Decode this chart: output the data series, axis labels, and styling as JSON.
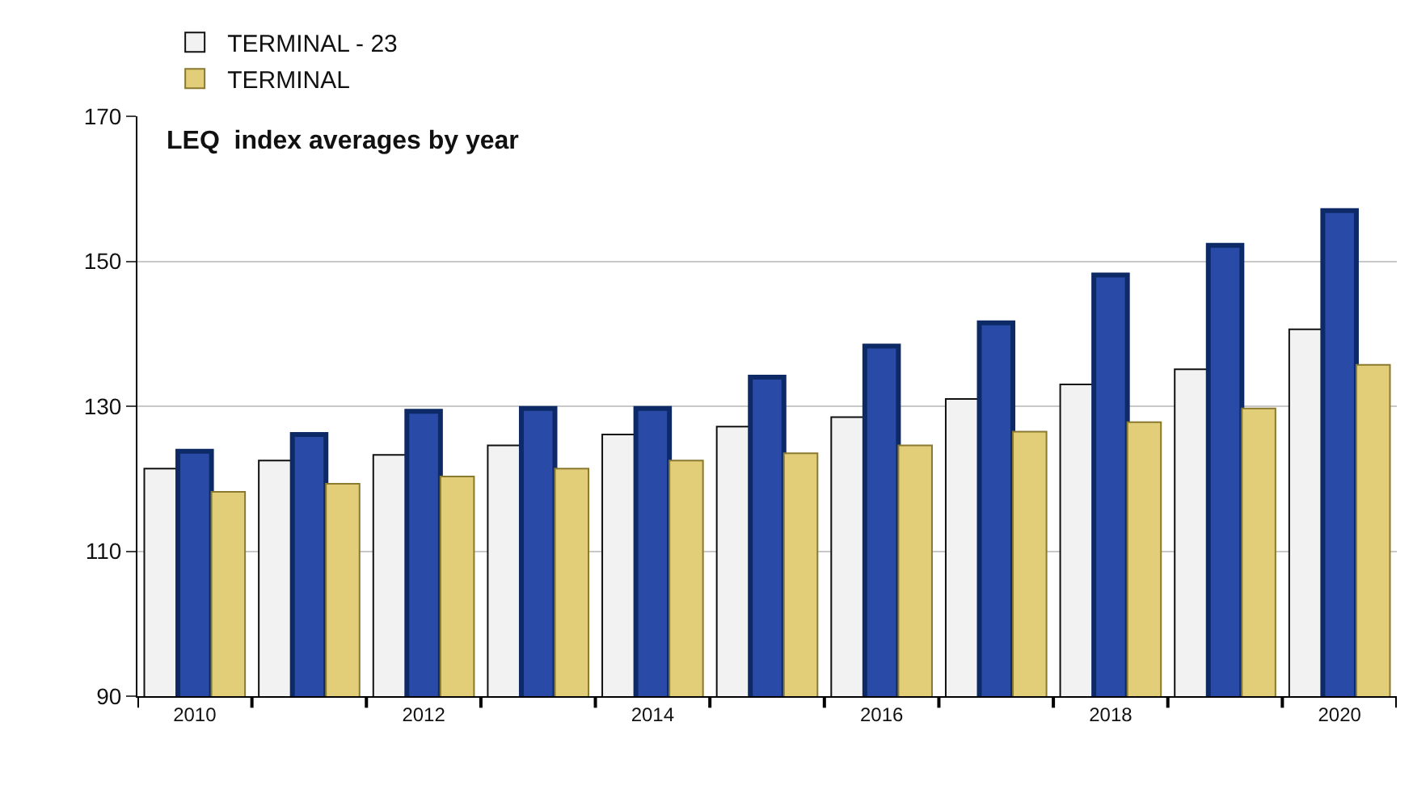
{
  "chart_data": {
    "type": "bar",
    "title": "LEQ  index averages by year",
    "categories": [
      "2010",
      null,
      "2012",
      null,
      "2014",
      null,
      "2016",
      null,
      "2018",
      null,
      "2020"
    ],
    "series": [
      {
        "name": "TERMINAL - 23",
        "color": "#f2f2f2",
        "values": [
          121.4,
          122.5,
          123.3,
          124.6,
          126.1,
          127.2,
          128.5,
          131,
          133,
          135.1,
          140.6
        ]
      },
      {
        "color": "#2a4aa8",
        "values": [
          123.8,
          126.1,
          129.3,
          129.7,
          129.7,
          134,
          138.3,
          141.5,
          148.1,
          152.2,
          157
        ]
      },
      {
        "name": "TERMINAL",
        "color": "#e2cd78",
        "values": [
          118.2,
          119.3,
          120.3,
          121.4,
          122.5,
          123.5,
          124.6,
          126.5,
          127.8,
          129.7,
          135.7
        ]
      }
    ],
    "ylim": [
      90,
      170
    ],
    "yticks": [
      90,
      110,
      130,
      150,
      170
    ],
    "grid": "y",
    "legend": "top"
  }
}
